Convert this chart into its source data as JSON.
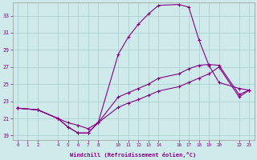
{
  "xlabel": "Windchill (Refroidissement éolien,°C)",
  "background_color": "#ceeaea",
  "line_color": "#880088",
  "xlim": [
    -0.5,
    23.5
  ],
  "ylim": [
    18.5,
    34.5
  ],
  "yticks": [
    19,
    21,
    23,
    25,
    27,
    29,
    31,
    33
  ],
  "xticks": [
    0,
    1,
    2,
    4,
    5,
    6,
    7,
    8,
    10,
    11,
    12,
    13,
    14,
    16,
    17,
    18,
    19,
    20,
    22,
    23
  ],
  "line1_x": [
    0,
    2,
    4,
    5,
    6,
    7,
    8,
    10,
    11,
    12,
    13,
    14,
    16,
    17,
    18,
    19,
    20,
    22,
    23
  ],
  "line1_y": [
    22.2,
    22.0,
    21.0,
    20.0,
    19.3,
    19.3,
    20.5,
    28.5,
    30.5,
    32.0,
    33.2,
    34.2,
    34.3,
    34.0,
    30.2,
    27.2,
    25.2,
    24.5,
    24.3
  ],
  "line2_x": [
    0,
    2,
    4,
    5,
    6,
    7,
    8,
    10,
    11,
    12,
    13,
    14,
    16,
    17,
    18,
    19,
    20,
    22,
    23
  ],
  "line2_y": [
    22.2,
    22.0,
    21.0,
    20.0,
    19.3,
    19.3,
    20.5,
    23.5,
    24.0,
    24.5,
    25.0,
    25.7,
    26.2,
    26.8,
    27.2,
    27.3,
    27.2,
    23.8,
    24.3
  ],
  "line3_x": [
    0,
    2,
    4,
    5,
    6,
    7,
    8,
    10,
    11,
    12,
    13,
    14,
    16,
    17,
    18,
    19,
    20,
    22,
    23
  ],
  "line3_y": [
    22.2,
    22.0,
    21.0,
    20.5,
    20.2,
    19.8,
    20.5,
    22.3,
    22.8,
    23.2,
    23.7,
    24.2,
    24.7,
    25.2,
    25.7,
    26.2,
    27.0,
    23.5,
    24.3
  ]
}
